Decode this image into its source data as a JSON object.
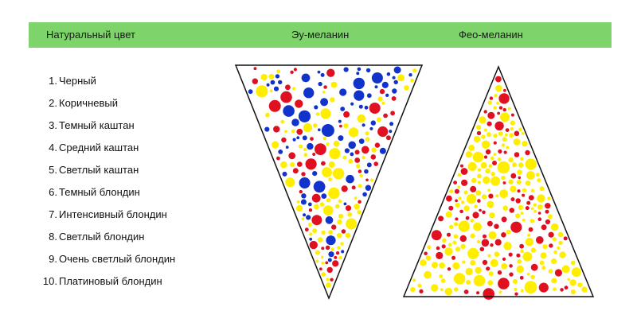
{
  "header": {
    "natural_label": "Натуральный цвет",
    "eu_label": "Эу-меланин",
    "pheo_label": "Фео-меланин",
    "bg_color": "#7ed36a"
  },
  "shades": [
    {
      "num": "1.",
      "label": "Черный"
    },
    {
      "num": "2.",
      "label": "Коричневый"
    },
    {
      "num": "3.",
      "label": "Темный каштан"
    },
    {
      "num": "4.",
      "label": "Средний каштан"
    },
    {
      "num": "5.",
      "label": "Светлый каштан"
    },
    {
      "num": "6.",
      "label": "Темный блондин"
    },
    {
      "num": "7.",
      "label": "Интенсивный блондин"
    },
    {
      "num": "8.",
      "label": "Светлый блондин"
    },
    {
      "num": "9.",
      "label": "Очень светлый блондин"
    },
    {
      "num": "10.",
      "label": "Платиновый блондин"
    }
  ],
  "colors": {
    "blue": "#1133cc",
    "red": "#e01020",
    "yellow": "#ffee00",
    "outline": "#111111"
  }
}
